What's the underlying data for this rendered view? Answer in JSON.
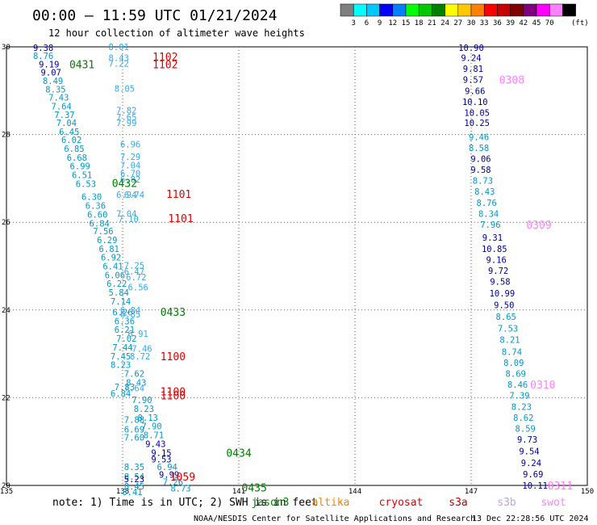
{
  "header": {
    "title": "00:00 – 11:59 UTC 01/21/2024",
    "subtitle": "12 hour collection of altimeter wave heights"
  },
  "colorbar": {
    "colors": [
      "#7f7f7f",
      "#00ffff",
      "#00c8ff",
      "#0000ff",
      "#0080ff",
      "#00ff00",
      "#00c800",
      "#008000",
      "#ffff00",
      "#ffc800",
      "#ff8000",
      "#ff0000",
      "#c80000",
      "#800000",
      "#800080",
      "#ff00ff",
      "#ff80ff",
      "#000000"
    ],
    "labels": [
      "3",
      "6",
      "9",
      "12",
      "15",
      "18",
      "21",
      "24",
      "27",
      "30",
      "33",
      "36",
      "39",
      "42",
      "45",
      "70"
    ],
    "unit": "(ft)"
  },
  "footer": {
    "note": "note: 1) Time is in UTC; 2) SWH is in feet",
    "credit": "NOAA/NESDIS Center for Satellite Applications and Research",
    "timestamp": "13 Dec 22:28:56 UTC 2024",
    "satellites": [
      {
        "name": "jason3",
        "color": "#008000"
      },
      {
        "name": "altika",
        "color": "#ff8000"
      },
      {
        "name": "cryosat",
        "color": "#e00000"
      },
      {
        "name": "s3a",
        "color": "#c00000"
      },
      {
        "name": "s3b",
        "color": "#c0a0f0"
      },
      {
        "name": "swot",
        "color": "#ff80ff"
      }
    ]
  },
  "chart_data": {
    "type": "scatter",
    "title": "12 hour collection of altimeter wave heights",
    "xlim": [
      135,
      150
    ],
    "ylim": [
      20,
      30
    ],
    "xticks": [
      135,
      138,
      141,
      144,
      147,
      150
    ],
    "yticks": [
      20,
      22,
      24,
      26,
      28,
      30
    ],
    "grid": true,
    "unit": "ft",
    "colors": {
      "cyan": "#0099cc",
      "navy": "#000099",
      "lightblue": "#33aaee",
      "green": "#008000",
      "red": "#e00000",
      "pink": "#ff80ff"
    },
    "points": [
      {
        "x": 135.95,
        "y": 29.98,
        "v": "9.38",
        "c": "navy"
      },
      {
        "x": 135.95,
        "y": 29.8,
        "v": "8.76",
        "c": "cyan"
      },
      {
        "x": 136.1,
        "y": 29.6,
        "v": "9.19",
        "c": "navy"
      },
      {
        "x": 136.15,
        "y": 29.42,
        "v": "9.07",
        "c": "navy"
      },
      {
        "x": 136.2,
        "y": 29.23,
        "v": "8.49",
        "c": "cyan"
      },
      {
        "x": 136.27,
        "y": 29.03,
        "v": "8.35",
        "c": "cyan"
      },
      {
        "x": 136.35,
        "y": 28.85,
        "v": "7.43",
        "c": "cyan"
      },
      {
        "x": 136.42,
        "y": 28.65,
        "v": "7.64",
        "c": "cyan"
      },
      {
        "x": 136.5,
        "y": 28.45,
        "v": "7.37",
        "c": "cyan"
      },
      {
        "x": 136.55,
        "y": 28.27,
        "v": "7.04",
        "c": "cyan"
      },
      {
        "x": 136.62,
        "y": 28.07,
        "v": "6.45",
        "c": "cyan"
      },
      {
        "x": 136.68,
        "y": 27.88,
        "v": "6.02",
        "c": "cyan"
      },
      {
        "x": 136.75,
        "y": 27.68,
        "v": "6.85",
        "c": "cyan"
      },
      {
        "x": 136.82,
        "y": 27.48,
        "v": "6.68",
        "c": "cyan"
      },
      {
        "x": 136.9,
        "y": 27.28,
        "v": "6.99",
        "c": "cyan"
      },
      {
        "x": 136.95,
        "y": 27.08,
        "v": "6.51",
        "c": "cyan"
      },
      {
        "x": 137.05,
        "y": 26.88,
        "v": "6.53",
        "c": "cyan"
      },
      {
        "x": 137.2,
        "y": 26.58,
        "v": "6.30",
        "c": "cyan"
      },
      {
        "x": 137.3,
        "y": 26.38,
        "v": "6.36",
        "c": "cyan"
      },
      {
        "x": 137.35,
        "y": 26.18,
        "v": "6.60",
        "c": "cyan"
      },
      {
        "x": 137.4,
        "y": 25.98,
        "v": "6.84",
        "c": "cyan"
      },
      {
        "x": 137.5,
        "y": 25.8,
        "v": "7.56",
        "c": "cyan"
      },
      {
        "x": 137.6,
        "y": 25.6,
        "v": "6.29",
        "c": "cyan"
      },
      {
        "x": 137.65,
        "y": 25.4,
        "v": "6.81",
        "c": "cyan"
      },
      {
        "x": 137.7,
        "y": 25.2,
        "v": "6.92",
        "c": "cyan"
      },
      {
        "x": 137.75,
        "y": 25.0,
        "v": "6.41",
        "c": "cyan"
      },
      {
        "x": 137.8,
        "y": 24.8,
        "v": "6.06",
        "c": "cyan"
      },
      {
        "x": 137.85,
        "y": 24.6,
        "v": "6.22",
        "c": "cyan"
      },
      {
        "x": 137.9,
        "y": 24.4,
        "v": "5.84",
        "c": "cyan"
      },
      {
        "x": 137.95,
        "y": 24.2,
        "v": "7.14",
        "c": "cyan"
      },
      {
        "x": 138.0,
        "y": 23.95,
        "v": "6.26",
        "c": "cyan"
      },
      {
        "x": 138.05,
        "y": 23.75,
        "v": "6.36",
        "c": "cyan"
      },
      {
        "x": 138.05,
        "y": 23.55,
        "v": "6.21",
        "c": "cyan"
      },
      {
        "x": 138.1,
        "y": 23.35,
        "v": "7.02",
        "c": "cyan"
      },
      {
        "x": 138.0,
        "y": 23.15,
        "v": "7.44",
        "c": "cyan"
      },
      {
        "x": 137.95,
        "y": 22.95,
        "v": "7.45",
        "c": "cyan"
      },
      {
        "x": 137.95,
        "y": 22.75,
        "v": "8.23",
        "c": "cyan"
      },
      {
        "x": 138.3,
        "y": 22.55,
        "v": "7.62",
        "c": "cyan"
      },
      {
        "x": 138.35,
        "y": 22.35,
        "v": "8.43",
        "c": "cyan"
      },
      {
        "x": 138.05,
        "y": 22.25,
        "v": "7.83",
        "c": "cyan"
      },
      {
        "x": 137.95,
        "y": 22.1,
        "v": "6.84",
        "c": "cyan"
      },
      {
        "x": 138.5,
        "y": 21.95,
        "v": "7.90",
        "c": "cyan"
      },
      {
        "x": 138.55,
        "y": 21.75,
        "v": "8.23",
        "c": "cyan"
      },
      {
        "x": 138.65,
        "y": 21.55,
        "v": "8.13",
        "c": "cyan"
      },
      {
        "x": 138.75,
        "y": 21.35,
        "v": "7.90",
        "c": "cyan"
      },
      {
        "x": 138.8,
        "y": 21.15,
        "v": "8.71",
        "c": "cyan"
      },
      {
        "x": 138.85,
        "y": 20.95,
        "v": "9.43",
        "c": "navy"
      },
      {
        "x": 139.0,
        "y": 20.75,
        "v": "9.15",
        "c": "navy"
      },
      {
        "x": 139.0,
        "y": 20.6,
        "v": "9.53",
        "c": "navy"
      },
      {
        "x": 139.15,
        "y": 20.42,
        "v": "6.94",
        "c": "cyan"
      },
      {
        "x": 139.2,
        "y": 20.25,
        "v": "9.99",
        "c": "navy"
      },
      {
        "x": 139.3,
        "y": 20.08,
        "v": "7.26",
        "c": "cyan"
      },
      {
        "x": 139.5,
        "y": 19.94,
        "v": "8.73",
        "c": "cyan"
      },
      {
        "x": 138.3,
        "y": 21.5,
        "v": "7.88",
        "c": "cyan"
      },
      {
        "x": 138.3,
        "y": 21.28,
        "v": "6.69",
        "c": "cyan"
      },
      {
        "x": 138.3,
        "y": 21.1,
        "v": "7.60",
        "c": "cyan"
      },
      {
        "x": 138.3,
        "y": 20.42,
        "v": "8.35",
        "c": "cyan"
      },
      {
        "x": 138.3,
        "y": 20.2,
        "v": "8.54",
        "c": "cyan"
      },
      {
        "x": 138.3,
        "y": 20.15,
        "v": "5.23",
        "c": "navy"
      },
      {
        "x": 138.3,
        "y": 19.98,
        "v": "8.45",
        "c": "cyan"
      },
      {
        "x": 138.25,
        "y": 19.85,
        "v": "8.41",
        "c": "cyan"
      },
      {
        "x": 137.9,
        "y": 30.0,
        "v": "8.01",
        "c": "lightblue"
      },
      {
        "x": 137.9,
        "y": 29.75,
        "v": "8.43",
        "c": "lightblue"
      },
      {
        "x": 137.9,
        "y": 29.62,
        "v": "7.22",
        "c": "lightblue"
      },
      {
        "x": 138.05,
        "y": 29.05,
        "v": "8.05",
        "c": "lightblue"
      },
      {
        "x": 138.1,
        "y": 28.55,
        "v": "7.82",
        "c": "lightblue"
      },
      {
        "x": 138.1,
        "y": 28.4,
        "v": "7.65",
        "c": "lightblue"
      },
      {
        "x": 138.1,
        "y": 28.27,
        "v": "7.99",
        "c": "lightblue"
      },
      {
        "x": 138.2,
        "y": 27.78,
        "v": "6.96",
        "c": "lightblue"
      },
      {
        "x": 138.2,
        "y": 27.5,
        "v": "7.29",
        "c": "lightblue"
      },
      {
        "x": 138.2,
        "y": 27.3,
        "v": "7.04",
        "c": "lightblue"
      },
      {
        "x": 138.2,
        "y": 27.12,
        "v": "6.70",
        "c": "lightblue"
      },
      {
        "x": 138.2,
        "y": 26.98,
        "v": "6.82",
        "c": "lightblue"
      },
      {
        "x": 138.1,
        "y": 26.63,
        "v": "6.94",
        "c": "lightblue"
      },
      {
        "x": 138.3,
        "y": 26.63,
        "v": "6.74",
        "c": "lightblue"
      },
      {
        "x": 138.1,
        "y": 26.2,
        "v": "7.04",
        "c": "lightblue"
      },
      {
        "x": 138.15,
        "y": 26.08,
        "v": "7.10",
        "c": "lightblue"
      },
      {
        "x": 138.3,
        "y": 25.02,
        "v": "7.25",
        "c": "lightblue"
      },
      {
        "x": 138.3,
        "y": 24.88,
        "v": "6.47",
        "c": "lightblue"
      },
      {
        "x": 138.35,
        "y": 24.75,
        "v": "6.72",
        "c": "lightblue"
      },
      {
        "x": 138.4,
        "y": 24.52,
        "v": "6.56",
        "c": "lightblue"
      },
      {
        "x": 138.2,
        "y": 24.0,
        "v": "6.84",
        "c": "lightblue"
      },
      {
        "x": 138.2,
        "y": 23.9,
        "v": "6.85",
        "c": "lightblue"
      },
      {
        "x": 138.4,
        "y": 23.46,
        "v": "6.91",
        "c": "lightblue"
      },
      {
        "x": 138.5,
        "y": 23.12,
        "v": "7.46",
        "c": "lightblue"
      },
      {
        "x": 138.45,
        "y": 22.95,
        "v": "8.72",
        "c": "lightblue"
      },
      {
        "x": 138.3,
        "y": 22.22,
        "v": "7.64",
        "c": "lightblue"
      },
      {
        "x": 147.0,
        "y": 29.98,
        "v": "10.90",
        "c": "navy"
      },
      {
        "x": 147.0,
        "y": 29.75,
        "v": "9.24",
        "c": "navy"
      },
      {
        "x": 147.05,
        "y": 29.5,
        "v": "9.81",
        "c": "navy"
      },
      {
        "x": 147.05,
        "y": 29.25,
        "v": "9.57",
        "c": "navy"
      },
      {
        "x": 147.1,
        "y": 29.0,
        "v": "9.66",
        "c": "navy"
      },
      {
        "x": 147.1,
        "y": 28.75,
        "v": "10.10",
        "c": "navy"
      },
      {
        "x": 147.15,
        "y": 28.5,
        "v": "10.05",
        "c": "navy"
      },
      {
        "x": 147.15,
        "y": 28.27,
        "v": "10.25",
        "c": "navy"
      },
      {
        "x": 147.2,
        "y": 27.95,
        "v": "9.46",
        "c": "cyan"
      },
      {
        "x": 147.2,
        "y": 27.7,
        "v": "8.58",
        "c": "cyan"
      },
      {
        "x": 147.25,
        "y": 27.45,
        "v": "9.06",
        "c": "navy"
      },
      {
        "x": 147.25,
        "y": 27.2,
        "v": "9.58",
        "c": "navy"
      },
      {
        "x": 147.3,
        "y": 26.95,
        "v": "8.73",
        "c": "cyan"
      },
      {
        "x": 147.35,
        "y": 26.7,
        "v": "8.43",
        "c": "cyan"
      },
      {
        "x": 147.4,
        "y": 26.45,
        "v": "8.76",
        "c": "cyan"
      },
      {
        "x": 147.45,
        "y": 26.2,
        "v": "8.34",
        "c": "cyan"
      },
      {
        "x": 147.5,
        "y": 25.95,
        "v": "7.96",
        "c": "cyan"
      },
      {
        "x": 147.55,
        "y": 25.65,
        "v": "9.31",
        "c": "navy"
      },
      {
        "x": 147.6,
        "y": 25.4,
        "v": "10.85",
        "c": "navy"
      },
      {
        "x": 147.65,
        "y": 25.15,
        "v": "9.16",
        "c": "navy"
      },
      {
        "x": 147.7,
        "y": 24.9,
        "v": "9.72",
        "c": "navy"
      },
      {
        "x": 147.75,
        "y": 24.65,
        "v": "9.58",
        "c": "navy"
      },
      {
        "x": 147.8,
        "y": 24.38,
        "v": "10.99",
        "c": "navy"
      },
      {
        "x": 147.85,
        "y": 24.12,
        "v": "9.50",
        "c": "navy"
      },
      {
        "x": 147.9,
        "y": 23.85,
        "v": "8.65",
        "c": "cyan"
      },
      {
        "x": 147.95,
        "y": 23.58,
        "v": "7.53",
        "c": "cyan"
      },
      {
        "x": 148.0,
        "y": 23.32,
        "v": "8.21",
        "c": "cyan"
      },
      {
        "x": 148.05,
        "y": 23.05,
        "v": "8.74",
        "c": "cyan"
      },
      {
        "x": 148.1,
        "y": 22.8,
        "v": "8.09",
        "c": "cyan"
      },
      {
        "x": 148.15,
        "y": 22.55,
        "v": "8.69",
        "c": "cyan"
      },
      {
        "x": 148.2,
        "y": 22.3,
        "v": "8.46",
        "c": "cyan"
      },
      {
        "x": 148.25,
        "y": 22.05,
        "v": "7.39",
        "c": "cyan"
      },
      {
        "x": 148.3,
        "y": 21.8,
        "v": "8.23",
        "c": "cyan"
      },
      {
        "x": 148.35,
        "y": 21.55,
        "v": "8.62",
        "c": "cyan"
      },
      {
        "x": 148.4,
        "y": 21.3,
        "v": "8.59",
        "c": "cyan"
      },
      {
        "x": 148.45,
        "y": 21.05,
        "v": "9.73",
        "c": "navy"
      },
      {
        "x": 148.5,
        "y": 20.78,
        "v": "9.54",
        "c": "navy"
      },
      {
        "x": 148.55,
        "y": 20.52,
        "v": "9.24",
        "c": "navy"
      },
      {
        "x": 148.6,
        "y": 20.26,
        "v": "9.69",
        "c": "navy"
      },
      {
        "x": 148.65,
        "y": 20.0,
        "v": "10.11",
        "c": "navy"
      }
    ],
    "annotations": [
      {
        "x": 136.95,
        "y": 29.6,
        "t": "0431",
        "c": "green"
      },
      {
        "x": 139.1,
        "y": 29.78,
        "t": "1102",
        "c": "red"
      },
      {
        "x": 139.1,
        "y": 29.6,
        "t": "1102",
        "c": "red"
      },
      {
        "x": 138.05,
        "y": 26.9,
        "t": "0432",
        "c": "green"
      },
      {
        "x": 139.45,
        "y": 26.65,
        "t": "1101",
        "c": "red"
      },
      {
        "x": 139.5,
        "y": 26.1,
        "t": "1101",
        "c": "red"
      },
      {
        "x": 139.3,
        "y": 23.96,
        "t": "0433",
        "c": "green"
      },
      {
        "x": 139.3,
        "y": 22.95,
        "t": "1100",
        "c": "red"
      },
      {
        "x": 139.3,
        "y": 22.15,
        "t": "1100",
        "c": "red"
      },
      {
        "x": 139.3,
        "y": 22.05,
        "t": "1100",
        "c": "red"
      },
      {
        "x": 141.0,
        "y": 20.75,
        "t": "0434",
        "c": "green"
      },
      {
        "x": 139.55,
        "y": 20.2,
        "t": "1059",
        "c": "red"
      },
      {
        "x": 141.4,
        "y": 19.95,
        "t": "0435",
        "c": "green"
      },
      {
        "x": 148.05,
        "y": 29.25,
        "t": "0308",
        "c": "pink"
      },
      {
        "x": 148.75,
        "y": 25.95,
        "t": "0309",
        "c": "pink"
      },
      {
        "x": 148.85,
        "y": 22.3,
        "t": "0310",
        "c": "pink"
      },
      {
        "x": 149.3,
        "y": 20.0,
        "t": "0311",
        "c": "pink"
      }
    ]
  }
}
